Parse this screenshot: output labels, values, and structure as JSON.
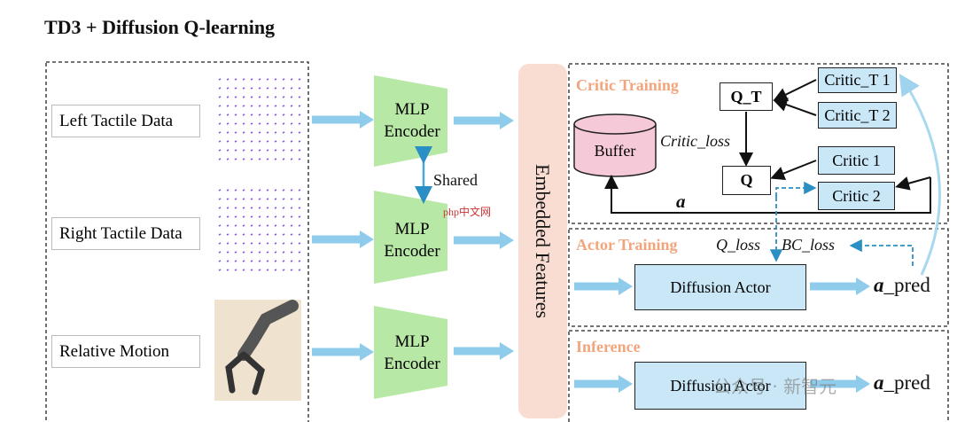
{
  "title": "TD3 + Diffusion Q-learning",
  "inputs": [
    "Left Tactile Data",
    "Right Tactile Data",
    "Relative Motion"
  ],
  "encoders": [
    "MLP Encoder",
    "MLP Encoder",
    "MLP Encoder"
  ],
  "shared": "Shared",
  "embedded": "Embedded Features",
  "critic_training": {
    "label": "Critic Training",
    "buffer": "Buffer",
    "critic_loss": "Critic_loss",
    "q_t": "Q_T",
    "q": "Q",
    "target_critics": [
      "Critic_T 1",
      "Critic_T 2"
    ],
    "critics": [
      "Critic 1",
      "Critic 2"
    ],
    "action": "a"
  },
  "actor_training": {
    "label": "Actor Training",
    "q_loss": "Q_loss",
    "bc_loss": "BC_loss",
    "actor": "Diffusion Actor",
    "output": {
      "symbol": "a",
      "suffix": "_pred"
    }
  },
  "inference": {
    "label": "Inference",
    "actor": "Diffusion Actor",
    "output": {
      "symbol": "a",
      "suffix": "_pred"
    }
  },
  "watermarks": [
    "php中文网",
    "公众号 · 新智元"
  ]
}
